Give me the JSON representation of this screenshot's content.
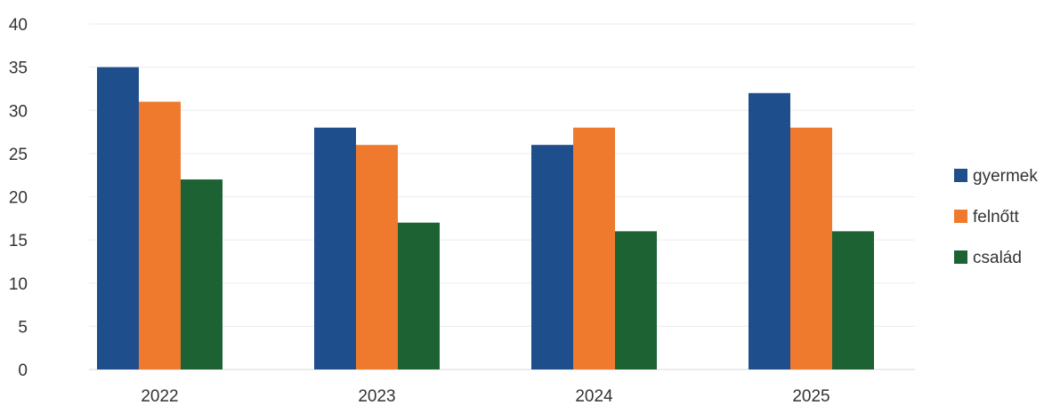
{
  "chart_data": {
    "type": "bar",
    "title": "",
    "xlabel": "",
    "ylabel": "",
    "categories": [
      "2022",
      "2023",
      "2024",
      "2025"
    ],
    "series": [
      {
        "name": "gyermek",
        "color": "#1f4e8c",
        "values": [
          35,
          28,
          26,
          32
        ]
      },
      {
        "name": "felnőtt",
        "color": "#ef7a2e",
        "values": [
          31,
          26,
          28,
          28
        ]
      },
      {
        "name": "család",
        "color": "#1c6233",
        "values": [
          22,
          17,
          16,
          16
        ]
      }
    ],
    "ylim": [
      0,
      40
    ],
    "yticks": [
      0,
      5,
      10,
      15,
      20,
      25,
      30,
      35,
      40
    ],
    "grid": true,
    "legend_position": "right"
  }
}
